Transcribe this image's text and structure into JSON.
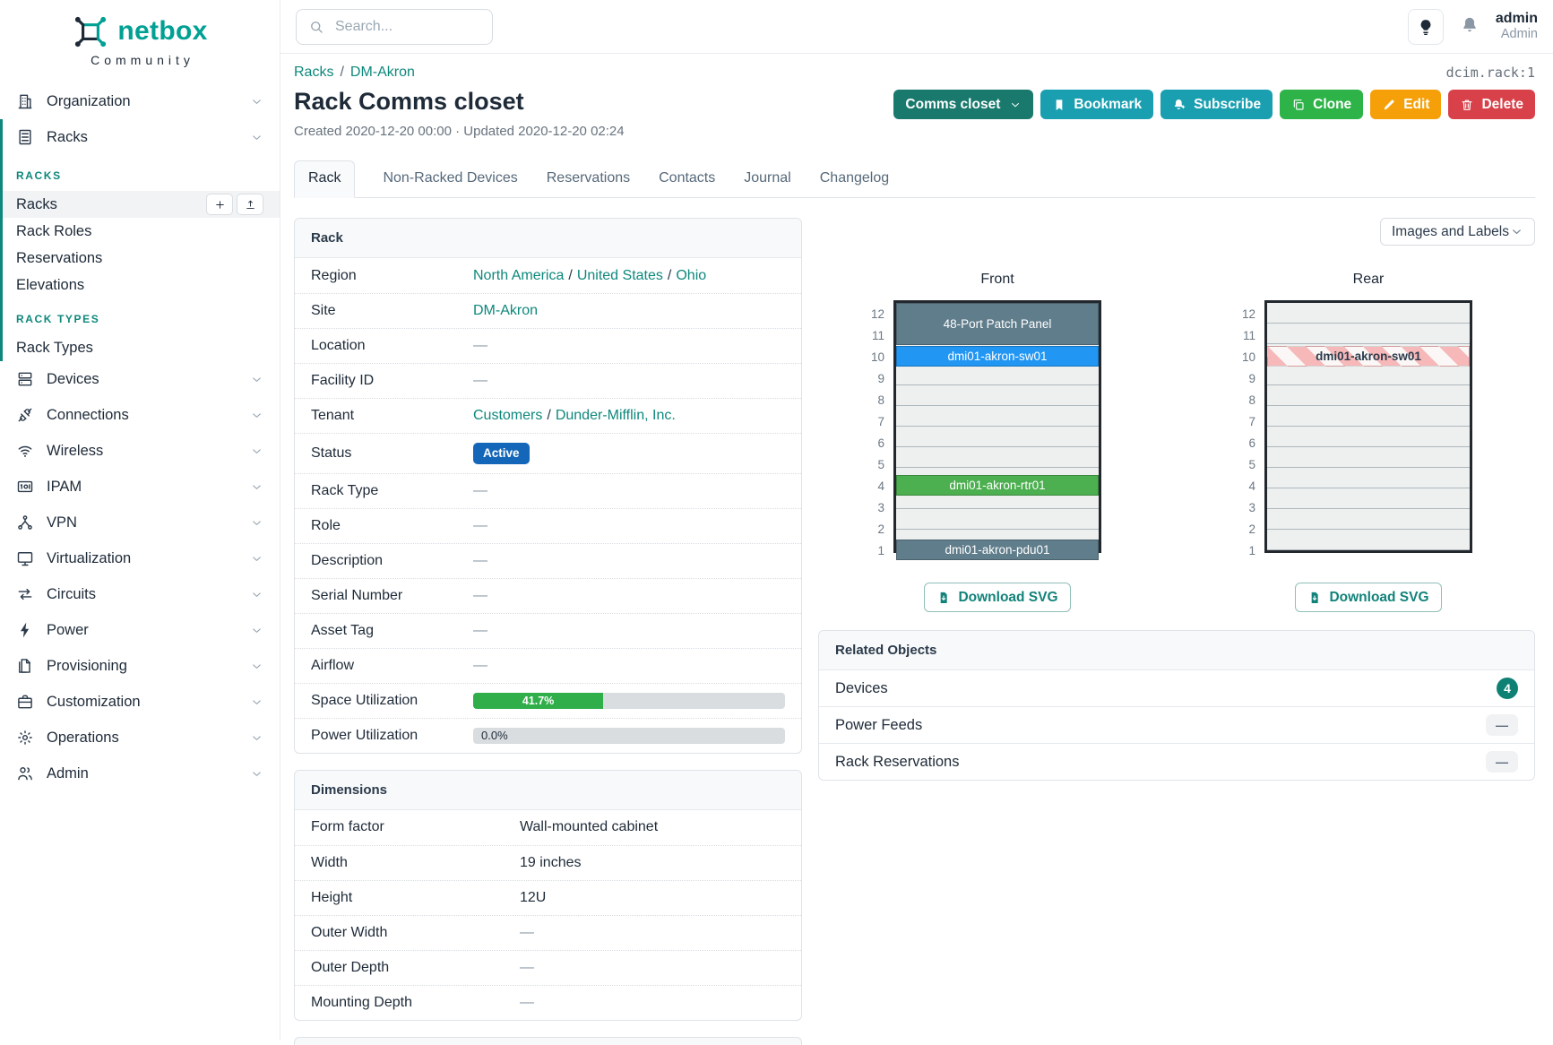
{
  "brand": {
    "name": "netbox",
    "subtitle": "Community"
  },
  "topbar": {
    "search": {
      "placeholder": "Search..."
    },
    "user": {
      "username": "admin",
      "role": "Admin"
    }
  },
  "sidebar": {
    "top_items": [
      {
        "label": "Organization",
        "icon": "building-icon"
      },
      {
        "label": "Racks",
        "icon": "rack-icon",
        "expanded": true
      }
    ],
    "expanded_sections": [
      {
        "heading": "RACKS",
        "items": [
          {
            "label": "Racks",
            "active": true,
            "actions": [
              {
                "name": "add",
                "icon": "plus-icon"
              },
              {
                "name": "import",
                "icon": "import-icon"
              }
            ]
          },
          {
            "label": "Rack Roles"
          },
          {
            "label": "Reservations"
          },
          {
            "label": "Elevations"
          }
        ]
      },
      {
        "heading": "RACK TYPES",
        "items": [
          {
            "label": "Rack Types"
          }
        ]
      }
    ],
    "bottom_items": [
      {
        "label": "Devices",
        "icon": "server-icon"
      },
      {
        "label": "Connections",
        "icon": "plug-icon"
      },
      {
        "label": "Wireless",
        "icon": "wifi-icon"
      },
      {
        "label": "IPAM",
        "icon": "ipam-icon"
      },
      {
        "label": "VPN",
        "icon": "network-icon"
      },
      {
        "label": "Virtualization",
        "icon": "monitor-icon"
      },
      {
        "label": "Circuits",
        "icon": "arrows-exchange-icon"
      },
      {
        "label": "Power",
        "icon": "bolt-icon"
      },
      {
        "label": "Provisioning",
        "icon": "document-icon"
      },
      {
        "label": "Customization",
        "icon": "briefcase-icon"
      },
      {
        "label": "Operations",
        "icon": "gear-icon"
      },
      {
        "label": "Admin",
        "icon": "users-icon"
      }
    ]
  },
  "breadcrumb": {
    "links": [
      "Racks",
      "DM-Akron"
    ],
    "object_id": "dcim.rack:1"
  },
  "page": {
    "title": "Rack Comms closet",
    "meta": "Created 2020-12-20 00:00 · Updated 2020-12-20 02:24",
    "actions": [
      {
        "label": "Comms closet",
        "color": "#19796D",
        "chevron": true,
        "name": "rack-select-button"
      },
      {
        "label": "Bookmark",
        "color": "#1A9FB1",
        "icon": "bookmark-icon",
        "name": "bookmark-button"
      },
      {
        "label": "Subscribe",
        "color": "#1A9FB1",
        "icon": "bell-plus-icon",
        "name": "subscribe-button"
      },
      {
        "label": "Clone",
        "color": "#2EB348",
        "icon": "copy-icon",
        "name": "clone-button"
      },
      {
        "label": "Edit",
        "color": "#F5A008",
        "icon": "pencil-icon",
        "name": "edit-button"
      },
      {
        "label": "Delete",
        "color": "#D8414A",
        "icon": "trash-icon",
        "name": "delete-button"
      }
    ]
  },
  "tabs": [
    {
      "label": "Rack",
      "active": true
    },
    {
      "label": "Non-Racked Devices"
    },
    {
      "label": "Reservations"
    },
    {
      "label": "Contacts"
    },
    {
      "label": "Journal"
    },
    {
      "label": "Changelog"
    }
  ],
  "rack_panel": {
    "title": "Rack",
    "rows": [
      {
        "label": "Region",
        "type": "links",
        "parts": [
          "North America",
          "United States",
          "Ohio"
        ]
      },
      {
        "label": "Site",
        "type": "links",
        "parts": [
          "DM-Akron"
        ]
      },
      {
        "label": "Location",
        "type": "empty",
        "value": "—"
      },
      {
        "label": "Facility ID",
        "type": "empty",
        "value": "—"
      },
      {
        "label": "Tenant",
        "type": "links",
        "parts": [
          "Customers",
          "Dunder-Mifflin, Inc."
        ]
      },
      {
        "label": "Status",
        "type": "badge",
        "value": "Active",
        "color": "#1467B8"
      },
      {
        "label": "Rack Type",
        "type": "empty",
        "value": "—"
      },
      {
        "label": "Role",
        "type": "empty",
        "value": "—"
      },
      {
        "label": "Description",
        "type": "empty",
        "value": "—"
      },
      {
        "label": "Serial Number",
        "type": "empty",
        "value": "—"
      },
      {
        "label": "Asset Tag",
        "type": "empty",
        "value": "—"
      },
      {
        "label": "Airflow",
        "type": "empty",
        "value": "—"
      },
      {
        "label": "Space Utilization",
        "type": "progress",
        "percent": 41.7,
        "text": "41.7%",
        "bar_color": "#2FAE4A"
      },
      {
        "label": "Power Utilization",
        "type": "progress",
        "percent": 0.0,
        "text": "0.0%",
        "bar_color": "#2FAE4A"
      }
    ]
  },
  "dimensions_panel": {
    "title": "Dimensions",
    "rows": [
      {
        "label": "Form factor",
        "type": "text",
        "value": "Wall-mounted cabinet"
      },
      {
        "label": "Width",
        "type": "text",
        "value": "19 inches"
      },
      {
        "label": "Height",
        "type": "text",
        "value": "12U"
      },
      {
        "label": "Outer Width",
        "type": "empty",
        "value": "—"
      },
      {
        "label": "Outer Depth",
        "type": "empty",
        "value": "—"
      },
      {
        "label": "Mounting Depth",
        "type": "empty",
        "value": "—"
      }
    ]
  },
  "elevation": {
    "display_mode_label": "Images and Labels",
    "unit_count": 12,
    "download_label": "Download SVG",
    "front": {
      "title": "Front",
      "devices": [
        {
          "name": "48-Port Patch Panel",
          "top_unit": 12,
          "u_height": 2,
          "color": "#607D8B",
          "text_color": "#FFFFFF"
        },
        {
          "name": "dmi01-akron-sw01",
          "top_unit": 10,
          "u_height": 1,
          "color": "#2196F3",
          "text_color": "#FFFFFF"
        },
        {
          "name": "dmi01-akron-rtr01",
          "top_unit": 4,
          "u_height": 1,
          "color": "#4CAF50",
          "text_color": "#FFFFFF"
        },
        {
          "name": "dmi01-akron-pdu01",
          "top_unit": 1,
          "u_height": 1,
          "color": "#607D8B",
          "text_color": "#FFFFFF"
        }
      ]
    },
    "rear": {
      "title": "Rear",
      "devices": [
        {
          "name": "dmi01-akron-sw01",
          "top_unit": 10,
          "u_height": 1,
          "hatched": true
        }
      ]
    }
  },
  "related_objects": {
    "title": "Related Objects",
    "rows": [
      {
        "label": "Devices",
        "count": "4"
      },
      {
        "label": "Power Feeds",
        "count": "—"
      },
      {
        "label": "Rack Reservations",
        "count": "—"
      }
    ]
  }
}
